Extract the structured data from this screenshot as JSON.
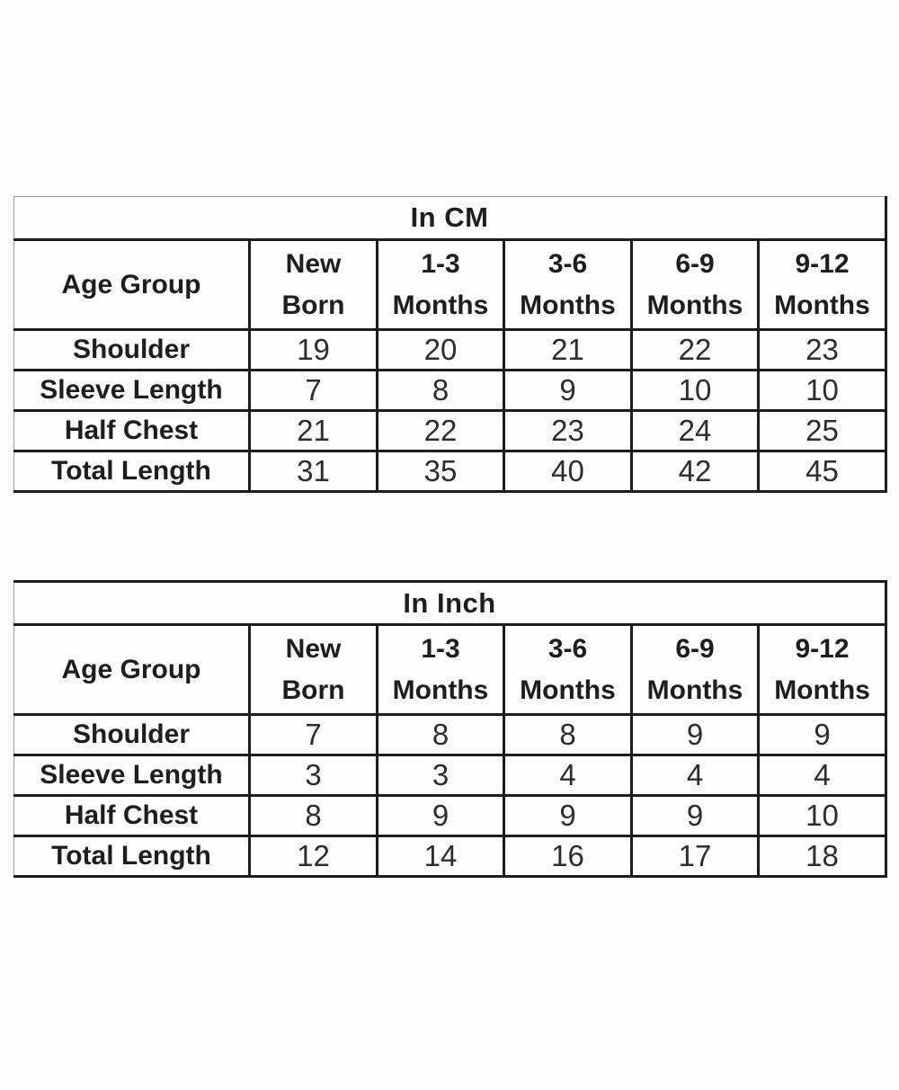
{
  "colors": {
    "background": "#fdfdfd",
    "border_dark": "#1d1d1d",
    "border_light": "#9b9b9b",
    "text_bold": "#1e1e1e",
    "text_value": "#2d2d2d"
  },
  "chart_data": [
    {
      "type": "table",
      "title": "In CM",
      "corner_label": "Age Group",
      "column_labels": [
        "New Born",
        "1-3 Months",
        "3-6 Months",
        "6-9 Months",
        "9-12 Months"
      ],
      "columns": [
        {
          "line1": "New",
          "line2": "Born"
        },
        {
          "line1": "1-3",
          "line2": "Months"
        },
        {
          "line1": "3-6",
          "line2": "Months"
        },
        {
          "line1": "6-9",
          "line2": "Months"
        },
        {
          "line1": "9-12",
          "line2": "Months"
        }
      ],
      "rows": [
        {
          "label": "Shoulder",
          "values": [
            19,
            20,
            21,
            22,
            23
          ]
        },
        {
          "label": "Sleeve Length",
          "values": [
            7,
            8,
            9,
            10,
            10
          ]
        },
        {
          "label": "Half Chest",
          "values": [
            21,
            22,
            23,
            24,
            25
          ]
        },
        {
          "label": "Total Length",
          "values": [
            31,
            35,
            40,
            42,
            45
          ]
        }
      ]
    },
    {
      "type": "table",
      "title": "In Inch",
      "corner_label": "Age Group",
      "column_labels": [
        "New Born",
        "1-3 Months",
        "3-6 Months",
        "6-9 Months",
        "9-12 Months"
      ],
      "columns": [
        {
          "line1": "New",
          "line2": "Born"
        },
        {
          "line1": "1-3",
          "line2": "Months"
        },
        {
          "line1": "3-6",
          "line2": "Months"
        },
        {
          "line1": "6-9",
          "line2": "Months"
        },
        {
          "line1": "9-12",
          "line2": "Months"
        }
      ],
      "rows": [
        {
          "label": "Shoulder",
          "values": [
            7,
            8,
            8,
            9,
            9
          ]
        },
        {
          "label": "Sleeve Length",
          "values": [
            3,
            3,
            4,
            4,
            4
          ]
        },
        {
          "label": "Half Chest",
          "values": [
            8,
            9,
            9,
            9,
            10
          ]
        },
        {
          "label": "Total Length",
          "values": [
            12,
            14,
            16,
            17,
            18
          ]
        }
      ]
    }
  ]
}
